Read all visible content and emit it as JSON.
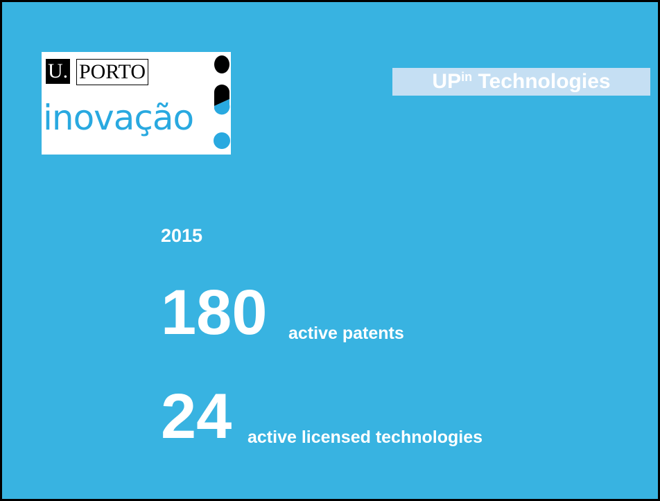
{
  "logo": {
    "mark": "U.",
    "name": "PORTO",
    "unit": "inovação"
  },
  "badge": {
    "main": "UP",
    "superscript": "in",
    "rest": "Technologies"
  },
  "year": "2015",
  "stats": [
    {
      "number": "180",
      "label": "active patents"
    },
    {
      "number": "24",
      "label": "active licensed technologies"
    }
  ]
}
